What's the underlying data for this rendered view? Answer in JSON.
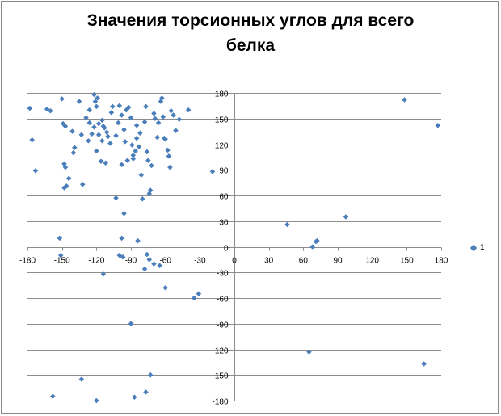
{
  "chart_data": {
    "type": "scatter",
    "title": "Значения торсионных углов для всего белка",
    "title_lines": [
      "Значения торсионных углов для всего",
      "белка"
    ],
    "xlabel": "",
    "ylabel": "",
    "xlim": [
      -180,
      180
    ],
    "ylim": [
      -180,
      180
    ],
    "x_ticks": [
      -180,
      -150,
      -120,
      -90,
      -60,
      -30,
      0,
      30,
      60,
      90,
      120,
      150,
      180
    ],
    "y_ticks": [
      180,
      150,
      120,
      90,
      60,
      30,
      0,
      -30,
      -60,
      -90,
      -120,
      -150,
      -180
    ],
    "grid": "horizontal",
    "legend_position": "right",
    "marker_color": "#4a7ebb",
    "series": [
      {
        "name": "1",
        "points": [
          [
            -178,
            162
          ],
          [
            -176,
            125
          ],
          [
            -173,
            89
          ],
          [
            -163,
            161
          ],
          [
            -160,
            159
          ],
          [
            -150,
            173
          ],
          [
            -149,
            144
          ],
          [
            -147,
            141
          ],
          [
            -148,
            97
          ],
          [
            -147,
            93
          ],
          [
            -148,
            69
          ],
          [
            -146,
            71
          ],
          [
            -144,
            80
          ],
          [
            -141,
            135
          ],
          [
            -139,
            116
          ],
          [
            -140,
            110
          ],
          [
            -135,
            170
          ],
          [
            -132,
            73
          ],
          [
            -133,
            131
          ],
          [
            -129,
            151
          ],
          [
            -127,
            124
          ],
          [
            -126,
            160
          ],
          [
            -122,
            178
          ],
          [
            -121,
            170
          ],
          [
            -120,
            164
          ],
          [
            -119,
            174
          ],
          [
            -118,
            144
          ],
          [
            -115,
            148
          ],
          [
            -114,
            141
          ],
          [
            -113,
            139
          ],
          [
            -111,
            134
          ],
          [
            -110,
            129
          ],
          [
            -108,
            121
          ],
          [
            -107,
            157
          ],
          [
            -106,
            164
          ],
          [
            -115,
            124
          ],
          [
            -112,
            98
          ],
          [
            -116,
            100
          ],
          [
            -120,
            112
          ],
          [
            -124,
            132
          ],
          [
            -126,
            145
          ],
          [
            -118,
            131
          ],
          [
            -122,
            140
          ],
          [
            -103,
            130
          ],
          [
            -101,
            145
          ],
          [
            -100,
            165
          ],
          [
            -98,
            154
          ],
          [
            -96,
            137
          ],
          [
            -95,
            123
          ],
          [
            -94,
            160
          ],
          [
            -92,
            163
          ],
          [
            -90,
            151
          ],
          [
            -89,
            119
          ],
          [
            -88,
            107
          ],
          [
            -86,
            112
          ],
          [
            -85,
            127
          ],
          [
            -83,
            117
          ],
          [
            -82,
            133
          ],
          [
            -81,
            84
          ],
          [
            -80,
            56
          ],
          [
            -78,
            146
          ],
          [
            -77,
            164
          ],
          [
            -76,
            111
          ],
          [
            -75,
            101
          ],
          [
            -74,
            62
          ],
          [
            -73,
            66
          ],
          [
            -72,
            95
          ],
          [
            -70,
            156
          ],
          [
            -69,
            150
          ],
          [
            -67,
            128
          ],
          [
            -66,
            145
          ],
          [
            -64,
            170
          ],
          [
            -63,
            174
          ],
          [
            -62,
            152
          ],
          [
            -61,
            127
          ],
          [
            -60,
            126
          ],
          [
            -58,
            113
          ],
          [
            -57,
            106
          ],
          [
            -56,
            93
          ],
          [
            -55,
            159
          ],
          [
            -53,
            154
          ],
          [
            -51,
            136
          ],
          [
            -48,
            149
          ],
          [
            -40,
            160
          ],
          [
            -103,
            57
          ],
          [
            -96,
            39
          ],
          [
            -98,
            96
          ],
          [
            -93,
            101
          ],
          [
            -85,
            142
          ],
          [
            -88,
            103
          ],
          [
            -152,
            10
          ],
          [
            -151,
            -10
          ],
          [
            -98,
            10
          ],
          [
            -84,
            7
          ],
          [
            -100,
            -10
          ],
          [
            -97,
            -12
          ],
          [
            -76,
            -9
          ],
          [
            -74,
            -15
          ],
          [
            -70,
            -20
          ],
          [
            -78,
            -26
          ],
          [
            -114,
            -32
          ],
          [
            -65,
            -22
          ],
          [
            -60,
            -48
          ],
          [
            -35,
            -60
          ],
          [
            -31,
            -55
          ],
          [
            -90,
            -90
          ],
          [
            -133,
            -155
          ],
          [
            -158,
            -175
          ],
          [
            -120,
            -180
          ],
          [
            -87,
            -176
          ],
          [
            -77,
            -170
          ],
          [
            -73,
            -150
          ],
          [
            -19,
            88
          ],
          [
            46,
            26
          ],
          [
            68,
            0
          ],
          [
            71,
            6
          ],
          [
            72,
            7
          ],
          [
            97,
            35
          ],
          [
            148,
            172
          ],
          [
            177,
            142
          ],
          [
            65,
            -123
          ],
          [
            165,
            -137
          ]
        ]
      }
    ]
  }
}
